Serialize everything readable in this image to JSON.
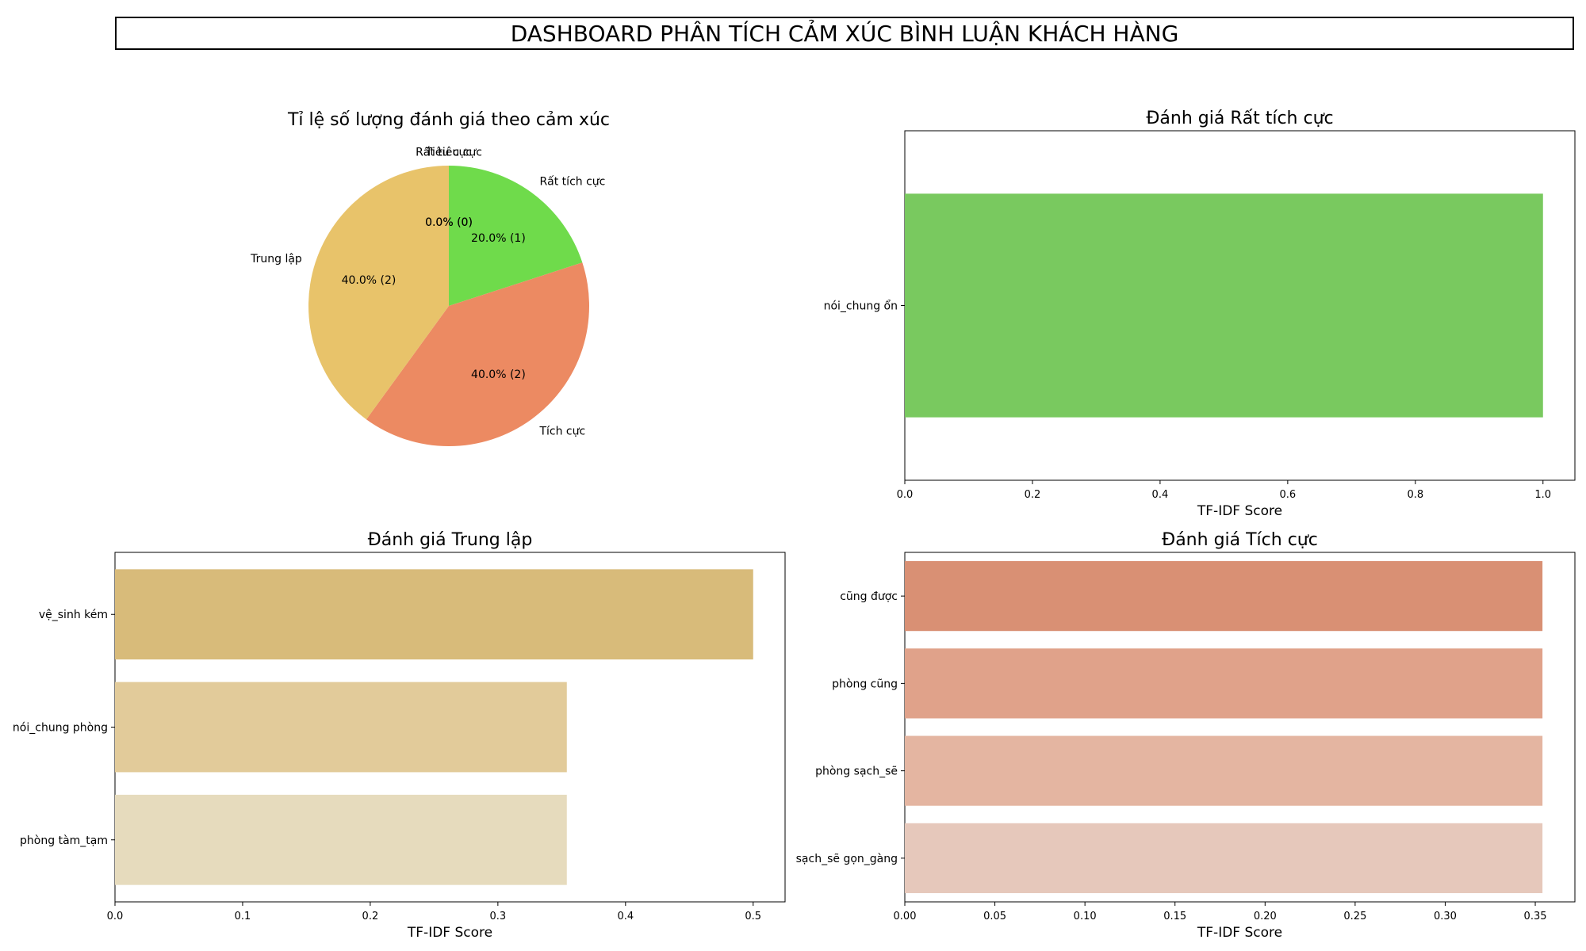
{
  "page_title": "DASHBOARD PHÂN TÍCH CẢM XÚC BÌNH LUẬN KHÁCH HÀNG",
  "chart_data": [
    {
      "type": "pie",
      "title": "Tỉ lệ số lượng đánh giá theo cảm xúc",
      "labels": [
        "Rất tích cực",
        "Tích cực",
        "Trung lập",
        "Tiêu cực",
        "Rất tiêu cực"
      ],
      "values": [
        1,
        2,
        2,
        0,
        0
      ],
      "value_labels": [
        "20.0% (1)",
        "40.0% (2)",
        "40.0% (2)",
        "0.0% (0)",
        "0.0% (0)"
      ],
      "colors": [
        "#6fdb4b",
        "#ec8a62",
        "#e8c36a",
        "#e05555",
        "#b03a3a"
      ],
      "start_angle": 90,
      "counterclock": false
    },
    {
      "type": "bar",
      "orientation": "horizontal",
      "title": "Đánh giá Rất tích cực",
      "categories": [
        "nói_chung ổn"
      ],
      "values": [
        1.0
      ],
      "xlabel": "TF-IDF Score",
      "xlim": [
        0,
        1.05
      ],
      "ticks": [
        "0.0",
        "0.2",
        "0.4",
        "0.6",
        "0.8",
        "1.0"
      ],
      "colors": [
        "#79c95f"
      ]
    },
    {
      "type": "bar",
      "orientation": "horizontal",
      "title": "Đánh giá Trung lập",
      "categories": [
        "vệ_sinh kém",
        "nói_chung phòng",
        "phòng tàm_tạm"
      ],
      "values": [
        0.5,
        0.354,
        0.354
      ],
      "xlabel": "TF-IDF Score",
      "xlim": [
        0,
        0.525
      ],
      "ticks": [
        "0.0",
        "0.1",
        "0.2",
        "0.3",
        "0.4",
        "0.5"
      ],
      "colors": [
        "#d8bb7a",
        "#e2cb9a",
        "#e6dbbd"
      ]
    },
    {
      "type": "bar",
      "orientation": "horizontal",
      "title": "Đánh giá Tích cực",
      "categories": [
        "cũng được",
        "phòng cũng",
        "phòng sạch_sẽ",
        "sạch_sẽ gọn_gàng"
      ],
      "values": [
        0.354,
        0.354,
        0.354,
        0.354
      ],
      "xlabel": "TF-IDF Score",
      "xlim": [
        0,
        0.372
      ],
      "ticks": [
        "0.00",
        "0.05",
        "0.10",
        "0.15",
        "0.20",
        "0.25",
        "0.30",
        "0.35"
      ],
      "colors": [
        "#d99074",
        "#e0a28a",
        "#e4b5a1",
        "#e6c8bb"
      ]
    }
  ]
}
